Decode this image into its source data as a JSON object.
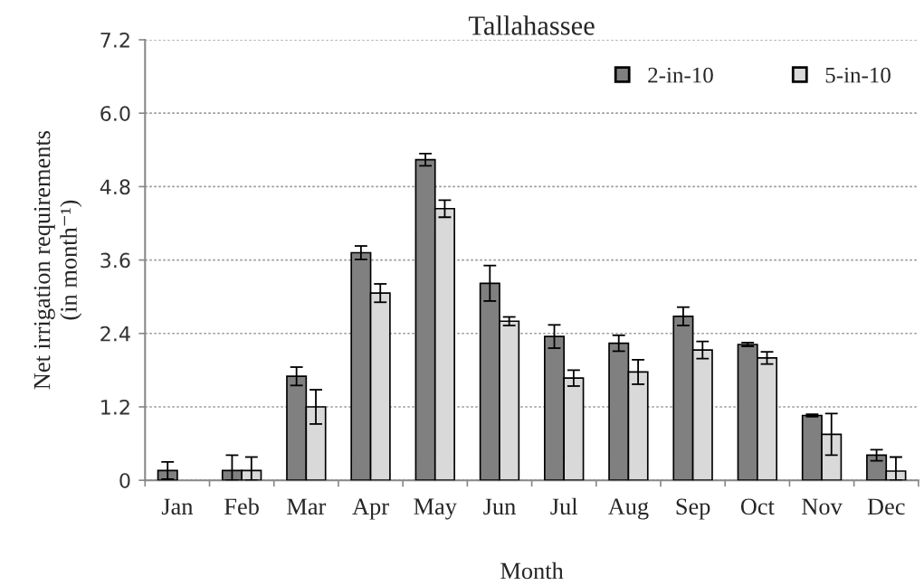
{
  "chart_data": {
    "type": "bar",
    "title": "Tallahassee",
    "xlabel": "Month",
    "ylabel": "Net irrigation requirements\n(in month⁻¹)",
    "categories": [
      "Jan",
      "Feb",
      "Mar",
      "Apr",
      "May",
      "Jun",
      "Jul",
      "Aug",
      "Sep",
      "Oct",
      "Nov",
      "Dec"
    ],
    "series": [
      {
        "name": "2-in-10",
        "color": "#808080",
        "values": [
          0.16,
          0.16,
          1.7,
          3.72,
          5.24,
          3.22,
          2.35,
          2.24,
          2.68,
          2.22,
          1.06,
          0.41
        ],
        "errors": [
          0.14,
          [
            0,
            0.41
          ],
          0.15,
          0.11,
          0.1,
          0.29,
          0.19,
          0.13,
          0.15,
          0.03,
          0.02,
          0.09
        ]
      },
      {
        "name": "5-in-10",
        "color": "#d9d9d9",
        "values": [
          null,
          0.16,
          1.2,
          3.06,
          4.44,
          2.6,
          1.67,
          1.77,
          2.13,
          2.0,
          0.75,
          0.15
        ],
        "errors": [
          null,
          [
            0,
            0.38
          ],
          0.28,
          0.15,
          0.14,
          0.07,
          0.13,
          0.2,
          0.14,
          0.1,
          0.34,
          [
            0,
            0.38
          ]
        ]
      }
    ],
    "ylim": [
      0,
      7.2
    ],
    "yticks": [
      0,
      1.2,
      2.4,
      3.6,
      4.8,
      {
        "value": 6.0,
        "label": "6.0"
      },
      7.2
    ],
    "grid": "y",
    "legend": "top right"
  }
}
